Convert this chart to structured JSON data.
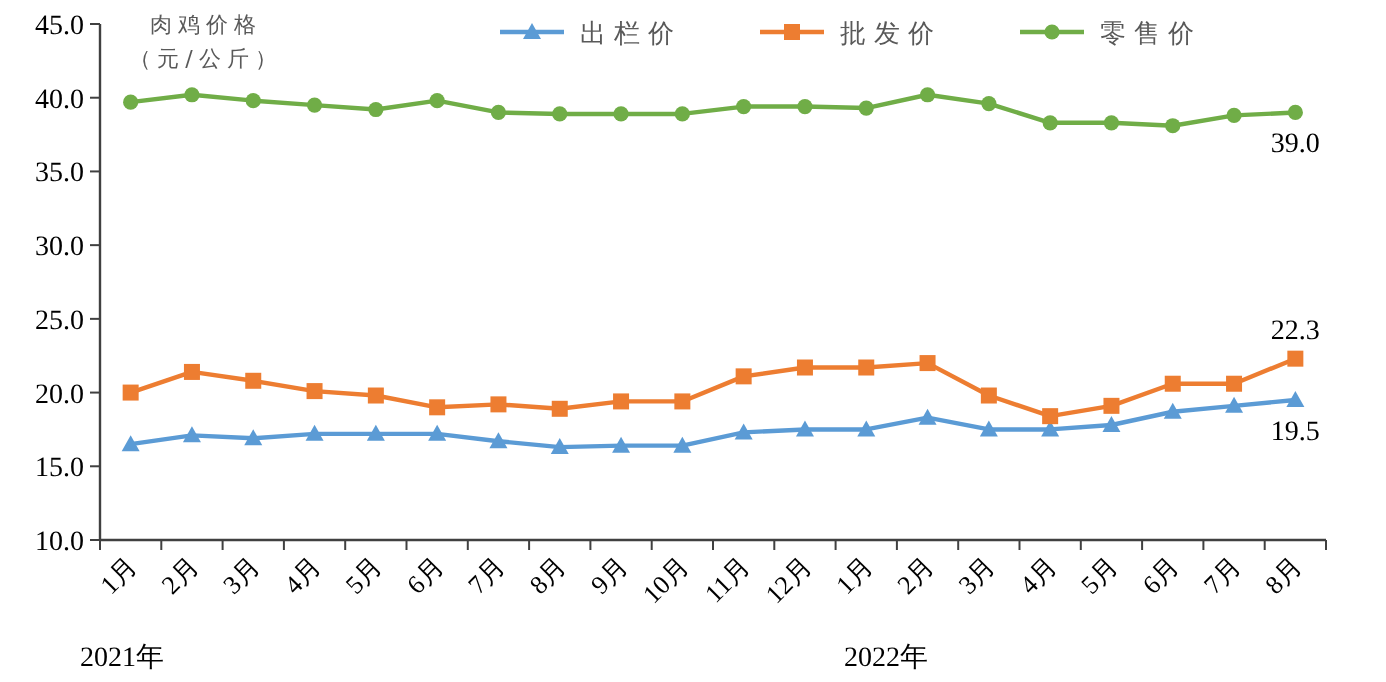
{
  "chart_data": {
    "type": "line",
    "ylabel": "肉鸡价格（元/公斤）",
    "categories": [
      "1月",
      "2月",
      "3月",
      "4月",
      "5月",
      "6月",
      "7月",
      "8月",
      "9月",
      "10月",
      "11月",
      "12月",
      "1月",
      "2月",
      "3月",
      "4月",
      "5月",
      "6月",
      "7月",
      "8月"
    ],
    "series": [
      {
        "name": "出栏价",
        "color": "#5b9bd5",
        "marker": "triangle",
        "values": [
          16.5,
          17.1,
          16.9,
          17.2,
          17.2,
          17.2,
          16.7,
          16.3,
          16.4,
          16.4,
          17.3,
          17.5,
          17.5,
          18.3,
          17.5,
          17.5,
          17.8,
          18.7,
          19.1,
          19.5
        ],
        "value_labels": [
          null,
          null,
          null,
          null,
          null,
          null,
          null,
          null,
          null,
          null,
          null,
          null,
          null,
          null,
          null,
          null,
          null,
          null,
          null,
          "19.5"
        ]
      },
      {
        "name": "批发价",
        "color": "#ed7d31",
        "marker": "square",
        "values": [
          20.0,
          21.4,
          20.8,
          20.1,
          19.8,
          19.0,
          19.2,
          18.9,
          19.4,
          19.4,
          21.1,
          21.7,
          21.7,
          22.0,
          19.8,
          18.4,
          19.1,
          20.6,
          20.6,
          22.3
        ],
        "value_labels": [
          null,
          null,
          null,
          null,
          null,
          null,
          null,
          null,
          null,
          null,
          null,
          null,
          null,
          null,
          null,
          null,
          null,
          null,
          null,
          "22.3"
        ]
      },
      {
        "name": "零售价",
        "color": "#70ad47",
        "marker": "circle",
        "values": [
          39.7,
          40.2,
          39.8,
          39.5,
          39.2,
          39.8,
          39.0,
          38.9,
          38.9,
          38.9,
          39.4,
          39.4,
          39.3,
          40.2,
          39.6,
          38.3,
          38.3,
          38.1,
          38.8,
          39.0
        ],
        "value_labels": [
          null,
          null,
          null,
          null,
          null,
          null,
          null,
          null,
          null,
          null,
          null,
          null,
          null,
          null,
          null,
          null,
          null,
          null,
          null,
          "39.0"
        ]
      }
    ],
    "ylim": [
      10,
      45
    ],
    "yticks": [
      {
        "value": 10,
        "label": "10.0"
      },
      {
        "value": 15,
        "label": "15.0"
      },
      {
        "value": 20,
        "label": "20.0"
      },
      {
        "value": 25,
        "label": "25.0"
      },
      {
        "value": 30,
        "label": "30.0"
      },
      {
        "value": 35,
        "label": "35.0"
      },
      {
        "value": 40,
        "label": "40.0"
      },
      {
        "value": 45,
        "label": "45.0"
      }
    ],
    "legend": "top",
    "grid": false,
    "annotations": [
      "2021年",
      "2022年"
    ]
  }
}
